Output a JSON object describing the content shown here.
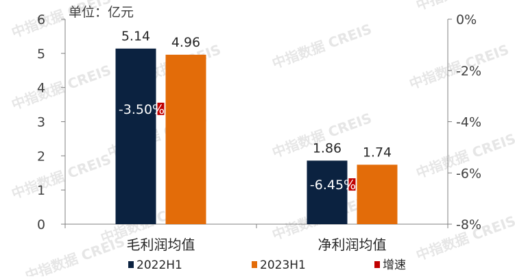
{
  "chart_data": {
    "type": "bar",
    "unit_label": "单位：亿元",
    "categories": [
      "毛利润均值",
      "净利润均值"
    ],
    "series": [
      {
        "name": "2022H1",
        "values": [
          5.14,
          1.86
        ],
        "color": "#0b2240"
      },
      {
        "name": "2023H1",
        "values": [
          4.96,
          1.74
        ],
        "color": "#e36c09"
      }
    ],
    "growth": {
      "name": "增速",
      "color": "#c00000",
      "values": [
        -3.5,
        -6.45
      ],
      "labels": [
        "-3.50%",
        "-6.45%"
      ]
    },
    "value_labels": [
      [
        "5.14",
        "1.86"
      ],
      [
        "4.96",
        "1.74"
      ]
    ],
    "ylim_left": [
      0,
      6
    ],
    "left_ticks": [
      "0",
      "1",
      "2",
      "3",
      "4",
      "5",
      "6"
    ],
    "ylim_right": [
      -8,
      0
    ],
    "right_ticks": [
      "0%",
      "-2%",
      "-4%",
      "-6%",
      "-8%"
    ],
    "legend": [
      "2022H1",
      "2023H1",
      "增速"
    ],
    "legend_position": "bottom",
    "grid": false,
    "watermark": "中指数据 CREIS"
  }
}
